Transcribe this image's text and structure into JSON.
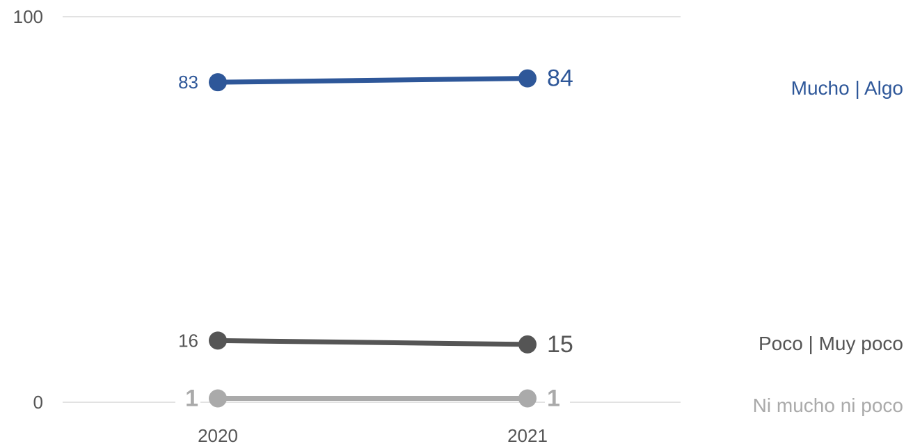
{
  "chart_data": {
    "type": "line",
    "categories": [
      "2020",
      "2021"
    ],
    "ylim": [
      0,
      100
    ],
    "yticks": [
      "0",
      "100"
    ],
    "grid": "horizontal lines at 0 and 100",
    "series": [
      {
        "name": "Mucho | Algo",
        "values": [
          83,
          84
        ],
        "labels": [
          "83",
          "84"
        ],
        "color": "#2e5799"
      },
      {
        "name": "Poco | Muy poco",
        "values": [
          16,
          15
        ],
        "labels": [
          "16",
          "15"
        ],
        "color": "#555555"
      },
      {
        "name": "Ni mucho ni poco",
        "values": [
          1,
          1
        ],
        "labels": [
          "1",
          "1"
        ],
        "color": "#aaaaaa"
      }
    ],
    "legend_placement": "right, aligned with series"
  }
}
